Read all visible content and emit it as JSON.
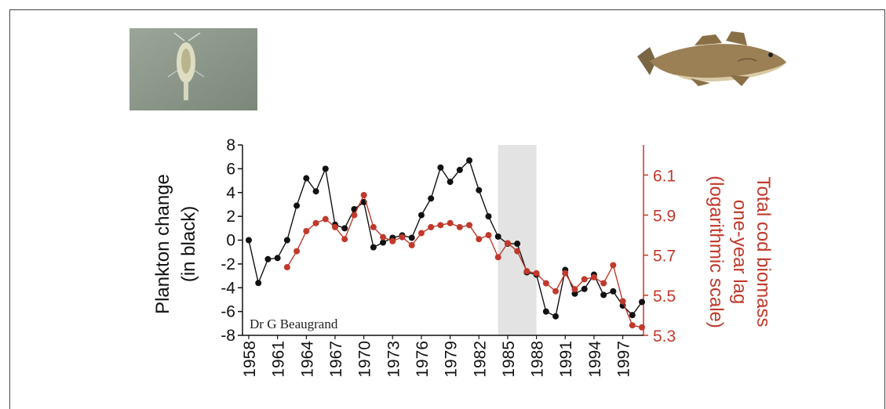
{
  "chart_data": {
    "type": "line",
    "credit": "Dr G Beaugrand",
    "xlim": [
      1958,
      1999
    ],
    "x_ticks": [
      "1958",
      "1961",
      "1964",
      "1967",
      "1970",
      "1973",
      "1976",
      "1979",
      "1982",
      "1985",
      "1988",
      "1991",
      "1994",
      "1997"
    ],
    "shaded_region": [
      1984,
      1988
    ],
    "y_left": {
      "label_lines": [
        "Plankton change",
        "(in black)"
      ],
      "ticks": [
        "8",
        "6",
        "4",
        "2",
        "0",
        "-2",
        "-4",
        "-6",
        "-8"
      ],
      "ylim": [
        -8,
        8
      ],
      "color": "#111111"
    },
    "y_right": {
      "label_lines": [
        "Total cod biomass",
        "one-year lag",
        "(logarithmic scale)"
      ],
      "ticks": [
        "6.1",
        "5.9",
        "5.7",
        "5.5",
        "5.3"
      ],
      "ylim": [
        5.3,
        6.25
      ],
      "color": "#c0392b"
    },
    "series": [
      {
        "axis": "left",
        "color": "#111111",
        "x": [
          1958,
          1959,
          1960,
          1961,
          1962,
          1963,
          1964,
          1965,
          1966,
          1967,
          1968,
          1969,
          1970,
          1971,
          1972,
          1973,
          1974,
          1975,
          1976,
          1977,
          1978,
          1979,
          1980,
          1981,
          1982,
          1983,
          1984,
          1985,
          1986,
          1987,
          1988,
          1989,
          1990,
          1991,
          1992,
          1993,
          1994,
          1995,
          1996,
          1997,
          1998,
          1999
        ],
        "values": [
          0.0,
          -3.6,
          -1.6,
          -1.5,
          0.0,
          2.9,
          5.2,
          4.1,
          6.0,
          1.3,
          1.0,
          2.6,
          3.2,
          -0.6,
          -0.2,
          0.2,
          0.4,
          0.2,
          2.1,
          3.5,
          6.1,
          4.9,
          5.9,
          6.7,
          4.2,
          2.0,
          0.3,
          -0.3,
          -0.3,
          -2.7,
          -2.9,
          -6.0,
          -6.4,
          -2.5,
          -4.5,
          -4.1,
          -2.9,
          -4.6,
          -4.3,
          -5.5,
          -6.3,
          -5.2
        ]
      },
      {
        "axis": "right",
        "color": "#c0392b",
        "x": [
          1962,
          1963,
          1964,
          1965,
          1966,
          1967,
          1968,
          1969,
          1970,
          1971,
          1972,
          1973,
          1974,
          1975,
          1976,
          1977,
          1978,
          1979,
          1980,
          1981,
          1982,
          1983,
          1984,
          1985,
          1986,
          1987,
          1988,
          1989,
          1990,
          1991,
          1992,
          1993,
          1994,
          1995,
          1996,
          1997,
          1998,
          1999
        ],
        "values": [
          5.64,
          5.72,
          5.82,
          5.86,
          5.88,
          5.84,
          5.78,
          5.9,
          6.0,
          5.84,
          5.79,
          5.77,
          5.79,
          5.75,
          5.81,
          5.84,
          5.85,
          5.86,
          5.84,
          5.85,
          5.78,
          5.8,
          5.69,
          5.76,
          5.72,
          5.62,
          5.61,
          5.56,
          5.52,
          5.61,
          5.53,
          5.58,
          5.59,
          5.56,
          5.65,
          5.47,
          5.35,
          5.34
        ]
      }
    ]
  },
  "images": {
    "plankton": "plankton-photo",
    "cod": "cod-fish-illustration"
  }
}
